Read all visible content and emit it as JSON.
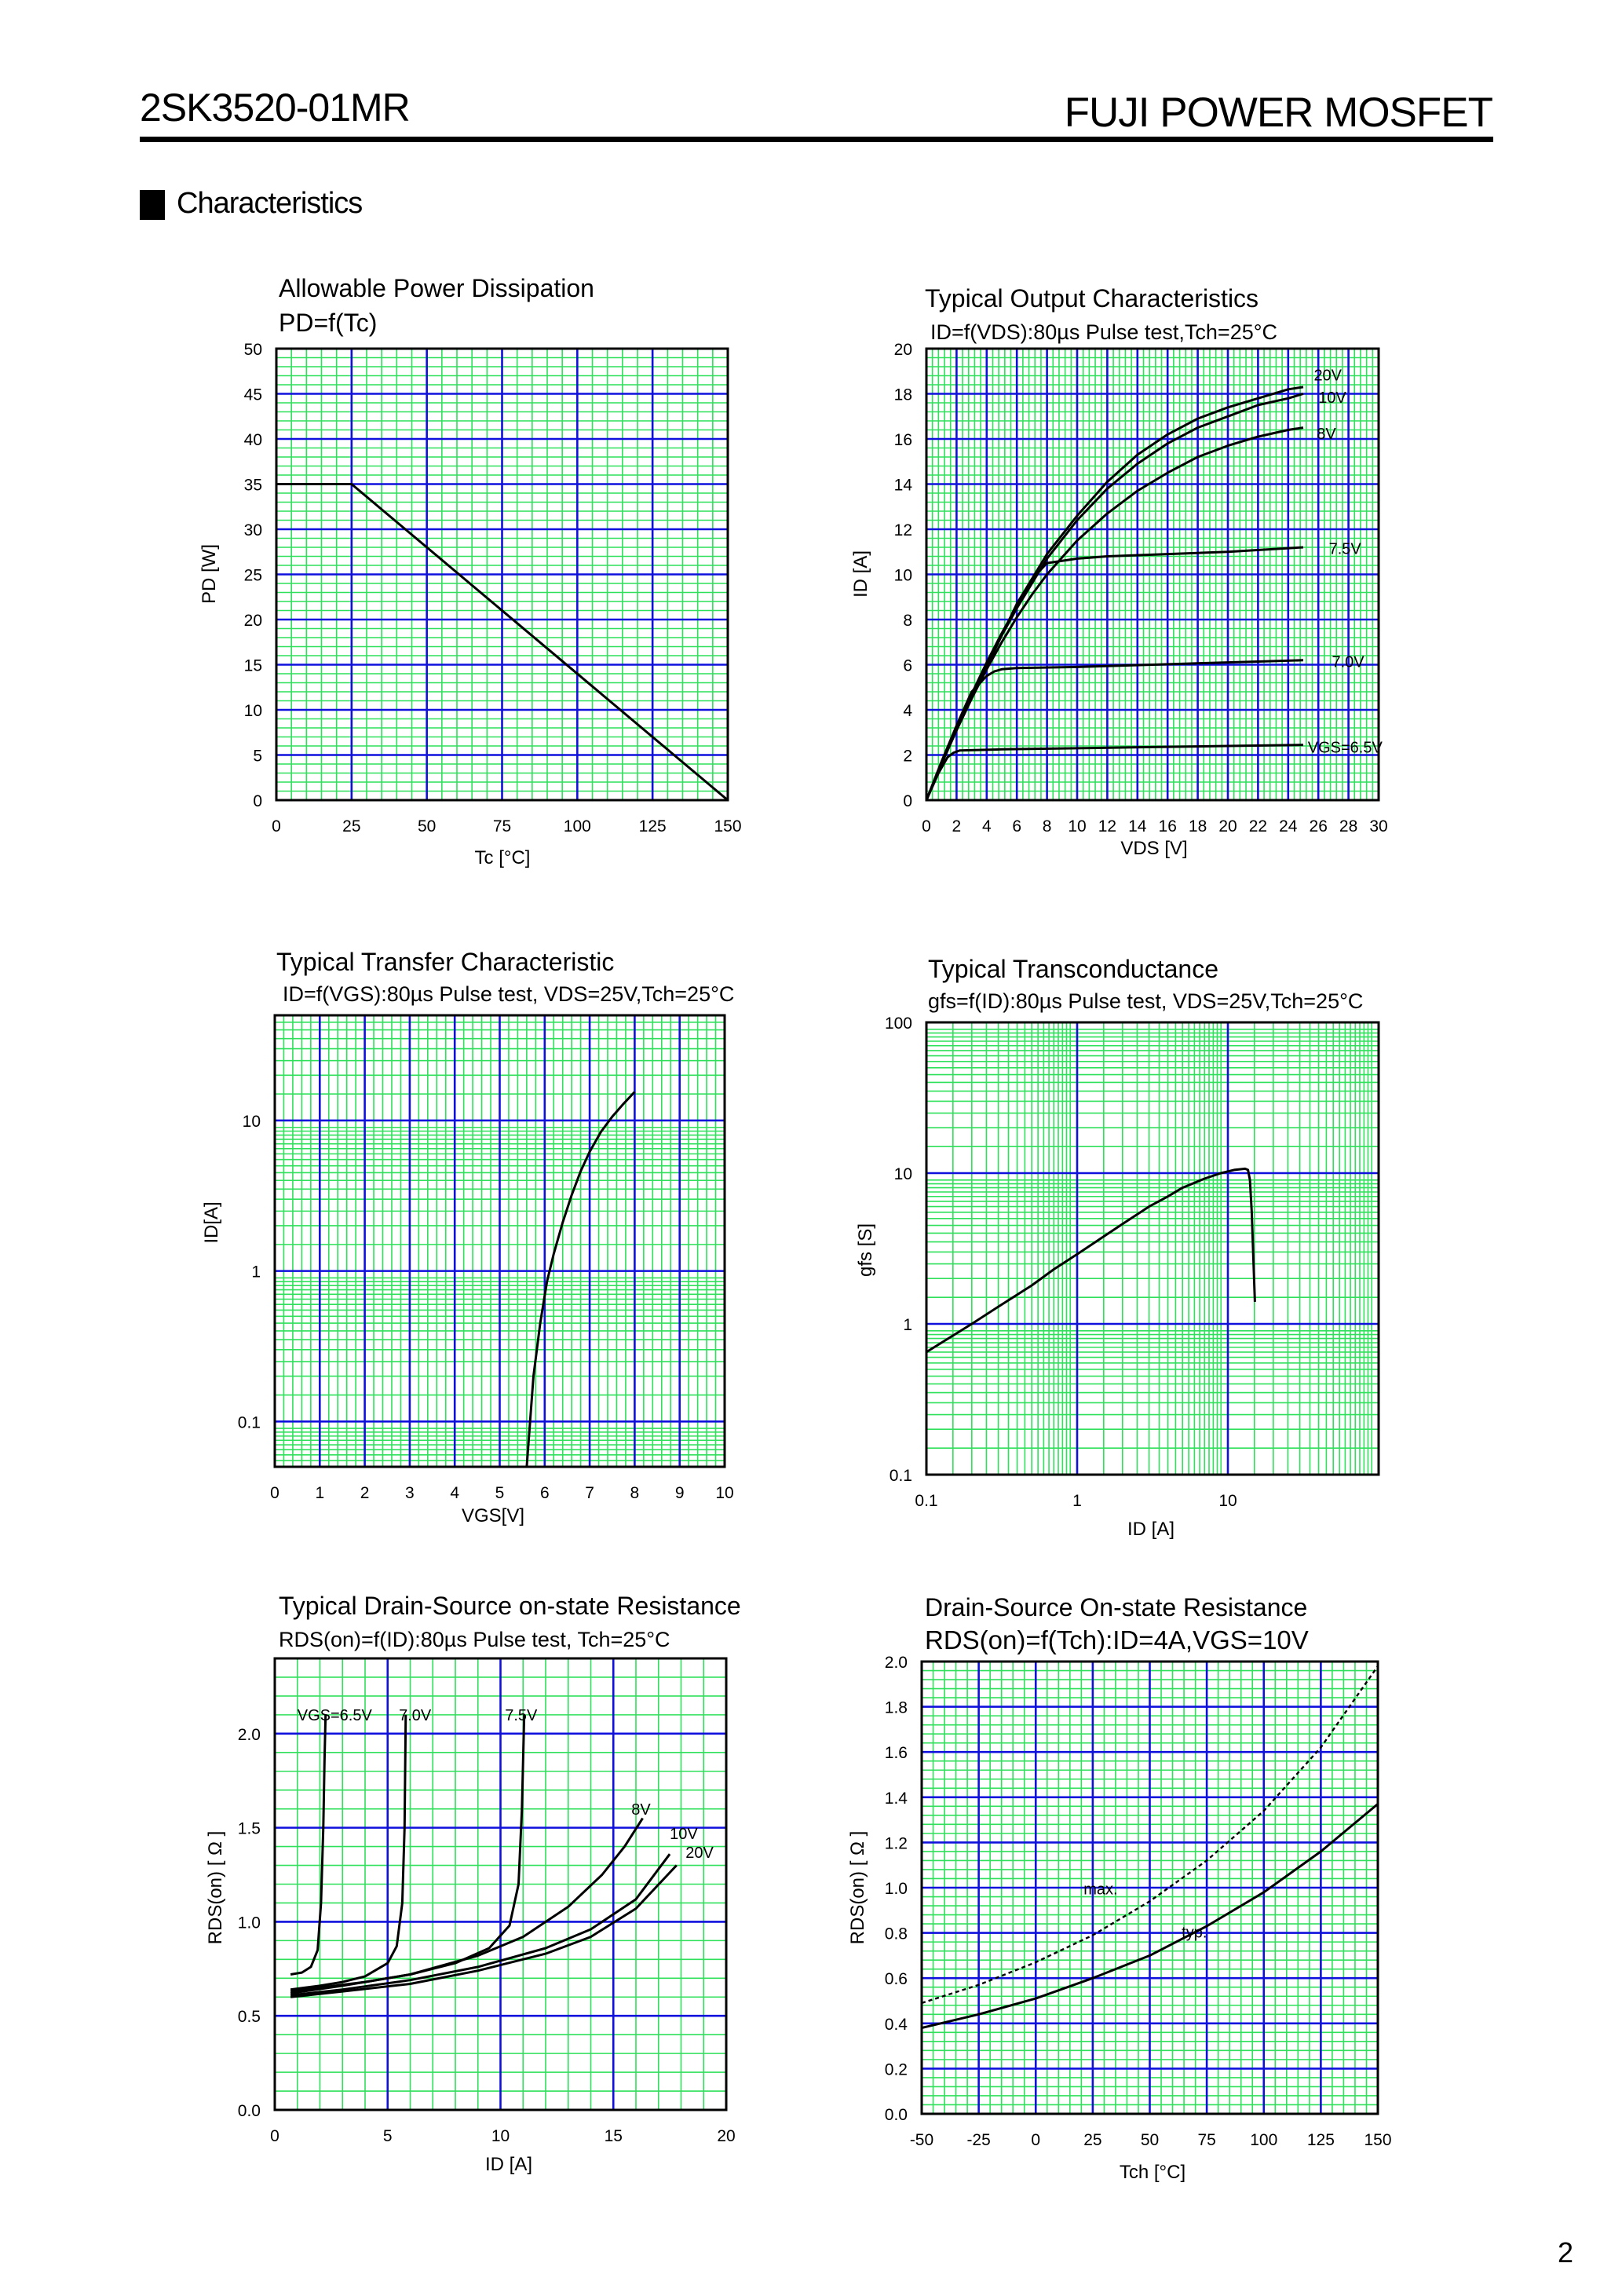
{
  "header": {
    "part_number": "2SK3520-01MR",
    "manufacturer": "FUJI POWER MOSFET"
  },
  "section_title": "Characteristics",
  "page_number": "2",
  "chart_data": [
    {
      "id": "pd",
      "type": "line",
      "title": "Allowable Power Dissipation",
      "subtitle": "PD=f(Tc)",
      "xlabel": "Tc [°C]",
      "ylabel": "PD [W]",
      "xscale": "linear",
      "yscale": "linear",
      "xlim": [
        0,
        150
      ],
      "ylim": [
        0,
        50
      ],
      "xticks": [
        0,
        25,
        50,
        75,
        100,
        125,
        150
      ],
      "xtick_labels": [
        "0",
        "25",
        "50",
        "75",
        "100",
        "125",
        "150"
      ],
      "yticks": [
        0,
        5,
        10,
        15,
        20,
        25,
        30,
        35,
        40,
        45,
        50
      ],
      "ytick_labels": [
        "0",
        "5",
        "10",
        "15",
        "20",
        "25",
        "30",
        "35",
        "40",
        "45",
        "50"
      ],
      "series": [
        {
          "name": "PD",
          "style": "solid",
          "x": [
            0,
            25,
            150
          ],
          "y": [
            35,
            35,
            0
          ]
        }
      ],
      "annotations": []
    },
    {
      "id": "output",
      "type": "line",
      "title": "Typical Output Characteristics",
      "subtitle": "ID=f(VDS):80µs Pulse test,Tch=25°C",
      "xlabel": "VDS [V]",
      "ylabel": "ID [A]",
      "xscale": "linear",
      "yscale": "linear",
      "xlim": [
        0,
        30
      ],
      "ylim": [
        0,
        20
      ],
      "xticks": [
        0,
        2,
        4,
        6,
        8,
        10,
        12,
        14,
        16,
        18,
        20,
        22,
        24,
        26,
        28,
        30
      ],
      "xtick_labels": [
        "0",
        "2",
        "4",
        "6",
        "8",
        "10",
        "12",
        "14",
        "16",
        "18",
        "20",
        "22",
        "24",
        "26",
        "28",
        "30"
      ],
      "yticks": [
        0,
        2,
        4,
        6,
        8,
        10,
        12,
        14,
        16,
        18,
        20
      ],
      "ytick_labels": [
        "0",
        "2",
        "4",
        "6",
        "8",
        "10",
        "12",
        "14",
        "16",
        "18",
        "20"
      ],
      "series": [
        {
          "name": "20V",
          "style": "solid",
          "x": [
            0,
            1,
            2,
            3,
            4,
            5,
            6,
            7,
            8,
            10,
            12,
            14,
            16,
            18,
            20,
            22,
            24,
            25
          ],
          "y": [
            0,
            1.6,
            3.2,
            4.7,
            6.1,
            7.4,
            8.6,
            9.8,
            10.9,
            12.6,
            14.1,
            15.3,
            16.2,
            16.9,
            17.4,
            17.8,
            18.2,
            18.3
          ]
        },
        {
          "name": "10V",
          "style": "solid",
          "x": [
            0,
            1,
            2,
            3,
            4,
            5,
            6,
            7,
            8,
            10,
            12,
            14,
            16,
            18,
            20,
            22,
            24,
            25
          ],
          "y": [
            0,
            1.6,
            3.2,
            4.6,
            6.0,
            7.3,
            8.5,
            9.6,
            10.7,
            12.4,
            13.8,
            14.9,
            15.8,
            16.5,
            17.0,
            17.5,
            17.8,
            18.0
          ]
        },
        {
          "name": "8V",
          "style": "solid",
          "x": [
            0,
            1,
            2,
            3,
            4,
            5,
            6,
            7,
            8,
            10,
            12,
            14,
            16,
            18,
            20,
            22,
            24,
            25
          ],
          "y": [
            0,
            1.6,
            3.1,
            4.5,
            5.8,
            7.0,
            8.1,
            9.1,
            10.0,
            11.5,
            12.7,
            13.7,
            14.5,
            15.2,
            15.7,
            16.1,
            16.4,
            16.5
          ]
        },
        {
          "name": "7.5V",
          "style": "solid",
          "x": [
            0,
            1,
            2,
            3,
            4,
            5,
            6,
            7,
            8,
            10,
            12,
            16,
            20,
            25
          ],
          "y": [
            0,
            1.6,
            3.1,
            4.5,
            5.9,
            7.3,
            8.7,
            9.8,
            10.5,
            10.7,
            10.8,
            10.9,
            11.0,
            11.2
          ]
        },
        {
          "name": "7.0V",
          "style": "solid",
          "x": [
            0,
            1,
            2,
            3,
            4,
            4.5,
            5,
            6,
            10,
            15,
            20,
            25
          ],
          "y": [
            0,
            1.7,
            3.3,
            4.8,
            5.5,
            5.7,
            5.8,
            5.85,
            5.9,
            6.0,
            6.1,
            6.2
          ]
        },
        {
          "name": "VGS=6.5V",
          "style": "solid",
          "x": [
            0,
            0.8,
            1.4,
            1.8,
            2.2,
            5,
            10,
            15,
            20,
            25
          ],
          "y": [
            0,
            1.2,
            1.9,
            2.1,
            2.2,
            2.25,
            2.3,
            2.35,
            2.4,
            2.45
          ]
        }
      ],
      "annotations": [
        {
          "text": "20V",
          "x": 25.7,
          "y": 18.6
        },
        {
          "text": "10V",
          "x": 26.0,
          "y": 17.6
        },
        {
          "text": "8V",
          "x": 25.9,
          "y": 16.0
        },
        {
          "text": "7.5V",
          "x": 26.7,
          "y": 10.9
        },
        {
          "text": "7.0V",
          "x": 26.9,
          "y": 5.9
        },
        {
          "text": "VGS=6.5V",
          "x": 25.3,
          "y": 2.1
        }
      ]
    },
    {
      "id": "transfer",
      "type": "line",
      "title": "Typical Transfer Characteristic",
      "subtitle": "ID=f(VGS):80µs Pulse test, VDS=25V,Tch=25°C",
      "xlabel": "VGS[V]",
      "ylabel": "ID[A]",
      "xscale": "linear",
      "yscale": "log",
      "xlim": [
        0,
        10
      ],
      "ylim": [
        0.05,
        50
      ],
      "xticks": [
        0,
        1,
        2,
        3,
        4,
        5,
        6,
        7,
        8,
        9,
        10
      ],
      "xtick_labels": [
        "0",
        "1",
        "2",
        "3",
        "4",
        "5",
        "6",
        "7",
        "8",
        "9",
        "10"
      ],
      "yticks": [
        0.1,
        1,
        10
      ],
      "ytick_labels": [
        "0.1",
        "1",
        "10"
      ],
      "series": [
        {
          "name": "ID",
          "style": "solid",
          "x": [
            5.6,
            5.75,
            5.9,
            6.05,
            6.2,
            6.4,
            6.6,
            6.8,
            7.0,
            7.25,
            7.5,
            7.75,
            8.0
          ],
          "y": [
            0.05,
            0.2,
            0.45,
            0.85,
            1.3,
            2.1,
            3.2,
            4.6,
            6.2,
            8.4,
            10.6,
            12.9,
            15.5
          ]
        }
      ],
      "annotations": []
    },
    {
      "id": "gfs",
      "type": "line",
      "title": "Typical Transconductance",
      "subtitle": "gfs=f(ID):80µs Pulse test, VDS=25V,Tch=25°C",
      "xlabel": "ID [A]",
      "ylabel": "gfs [S]",
      "xscale": "log",
      "yscale": "log",
      "xlim": [
        0.1,
        100
      ],
      "ylim": [
        0.1,
        100
      ],
      "xticks": [
        0.1,
        1,
        10
      ],
      "xtick_labels": [
        "0.1",
        "1",
        "10"
      ],
      "yticks": [
        0.1,
        1,
        10,
        100
      ],
      "ytick_labels": [
        "0.1",
        "1",
        "10",
        "100"
      ],
      "series": [
        {
          "name": "gfs",
          "style": "solid",
          "x": [
            0.1,
            0.2,
            0.3,
            0.5,
            0.7,
            1,
            2,
            3,
            4,
            5,
            7,
            9,
            11,
            12,
            13,
            13.6,
            14,
            14.4,
            14.8,
            15.1
          ],
          "y": [
            0.65,
            1.0,
            1.3,
            1.8,
            2.3,
            2.9,
            4.6,
            6.0,
            7.0,
            8.0,
            9.2,
            10.0,
            10.5,
            10.6,
            10.7,
            10.5,
            9.0,
            5.5,
            2.5,
            1.4
          ]
        }
      ],
      "annotations": []
    },
    {
      "id": "rds_id",
      "type": "line",
      "title": "Typical Drain-Source on-state Resistance",
      "subtitle": "RDS(on)=f(ID):80µs Pulse test, Tch=25°C",
      "xlabel": "ID [A]",
      "ylabel": "RDS(on) [ Ω ]",
      "xscale": "linear",
      "yscale": "linear",
      "xlim": [
        0,
        20
      ],
      "ylim": [
        0,
        2.4
      ],
      "xticks": [
        0,
        5,
        10,
        15,
        20
      ],
      "xtick_labels": [
        "0",
        "5",
        "10",
        "15",
        "20"
      ],
      "yticks": [
        0,
        0.5,
        1.0,
        1.5,
        2.0
      ],
      "ytick_labels": [
        "0.0",
        "0.5",
        "1.0",
        "1.5",
        "2.0"
      ],
      "series": [
        {
          "name": "VGS=6.5V",
          "style": "solid",
          "x": [
            0.7,
            1.2,
            1.6,
            1.9,
            2.05,
            2.15,
            2.2,
            2.25
          ],
          "y": [
            0.72,
            0.73,
            0.76,
            0.85,
            1.1,
            1.5,
            1.85,
            2.1
          ]
        },
        {
          "name": "7.0V",
          "style": "solid",
          "x": [
            0.7,
            2,
            3,
            4,
            5,
            5.4,
            5.65,
            5.75,
            5.8
          ],
          "y": [
            0.64,
            0.66,
            0.68,
            0.71,
            0.78,
            0.87,
            1.1,
            1.5,
            2.1
          ]
        },
        {
          "name": "7.5V",
          "style": "solid",
          "x": [
            0.7,
            2,
            4,
            6,
            8,
            9.5,
            10.4,
            10.8,
            10.95,
            11.05
          ],
          "y": [
            0.63,
            0.65,
            0.68,
            0.72,
            0.78,
            0.86,
            0.98,
            1.2,
            1.6,
            2.1
          ]
        },
        {
          "name": "8V",
          "style": "solid",
          "x": [
            0.7,
            3,
            6,
            9,
            11,
            13,
            14.5,
            15.5,
            16.3
          ],
          "y": [
            0.62,
            0.66,
            0.72,
            0.82,
            0.92,
            1.08,
            1.25,
            1.4,
            1.55
          ]
        },
        {
          "name": "10V",
          "style": "solid",
          "x": [
            0.7,
            3,
            6,
            9,
            12,
            14,
            16,
            17.5
          ],
          "y": [
            0.61,
            0.64,
            0.69,
            0.76,
            0.86,
            0.96,
            1.12,
            1.36
          ]
        },
        {
          "name": "20V",
          "style": "solid",
          "x": [
            0.7,
            3,
            6,
            9,
            12,
            14,
            16,
            17.8
          ],
          "y": [
            0.6,
            0.63,
            0.67,
            0.74,
            0.83,
            0.92,
            1.07,
            1.3
          ]
        }
      ],
      "annotations": [
        {
          "text": "VGS=6.5V",
          "x": 1.0,
          "y": 2.07
        },
        {
          "text": "7.0V",
          "x": 5.5,
          "y": 2.07
        },
        {
          "text": "7.5V",
          "x": 10.2,
          "y": 2.07
        },
        {
          "text": "8V",
          "x": 15.8,
          "y": 1.57
        },
        {
          "text": "10V",
          "x": 17.5,
          "y": 1.44
        },
        {
          "text": "20V",
          "x": 18.2,
          "y": 1.34
        }
      ]
    },
    {
      "id": "rds_tch",
      "type": "line",
      "title": "Drain-Source On-state Resistance",
      "subtitle": "RDS(on)=f(Tch):ID=4A,VGS=10V",
      "xlabel": "Tch [°C]",
      "ylabel": "RDS(on) [ Ω ]",
      "xscale": "linear",
      "yscale": "linear",
      "xlim": [
        -50,
        150
      ],
      "ylim": [
        0,
        2.0
      ],
      "xticks": [
        -50,
        -25,
        0,
        25,
        50,
        75,
        100,
        125,
        150
      ],
      "xtick_labels": [
        "-50",
        "-25",
        "0",
        "25",
        "50",
        "75",
        "100",
        "125",
        "150"
      ],
      "yticks": [
        0,
        0.2,
        0.4,
        0.6,
        0.8,
        1.0,
        1.2,
        1.4,
        1.6,
        1.8,
        2.0
      ],
      "ytick_labels": [
        "0.0",
        "0.2",
        "0.4",
        "0.6",
        "0.8",
        "1.0",
        "1.2",
        "1.4",
        "1.6",
        "1.8",
        "2.0"
      ],
      "series": [
        {
          "name": "max.",
          "style": "dashed",
          "x": [
            -50,
            -25,
            0,
            25,
            50,
            75,
            100,
            125,
            150
          ],
          "y": [
            0.49,
            0.57,
            0.67,
            0.79,
            0.94,
            1.12,
            1.34,
            1.62,
            1.98
          ]
        },
        {
          "name": "typ.",
          "style": "solid",
          "x": [
            -50,
            -25,
            0,
            25,
            50,
            75,
            100,
            125,
            150
          ],
          "y": [
            0.38,
            0.44,
            0.51,
            0.6,
            0.7,
            0.83,
            0.98,
            1.16,
            1.37
          ]
        }
      ],
      "annotations": [
        {
          "text": "max.",
          "x": 21,
          "y": 0.97
        },
        {
          "text": "typ.",
          "x": 64,
          "y": 0.78
        }
      ]
    }
  ]
}
